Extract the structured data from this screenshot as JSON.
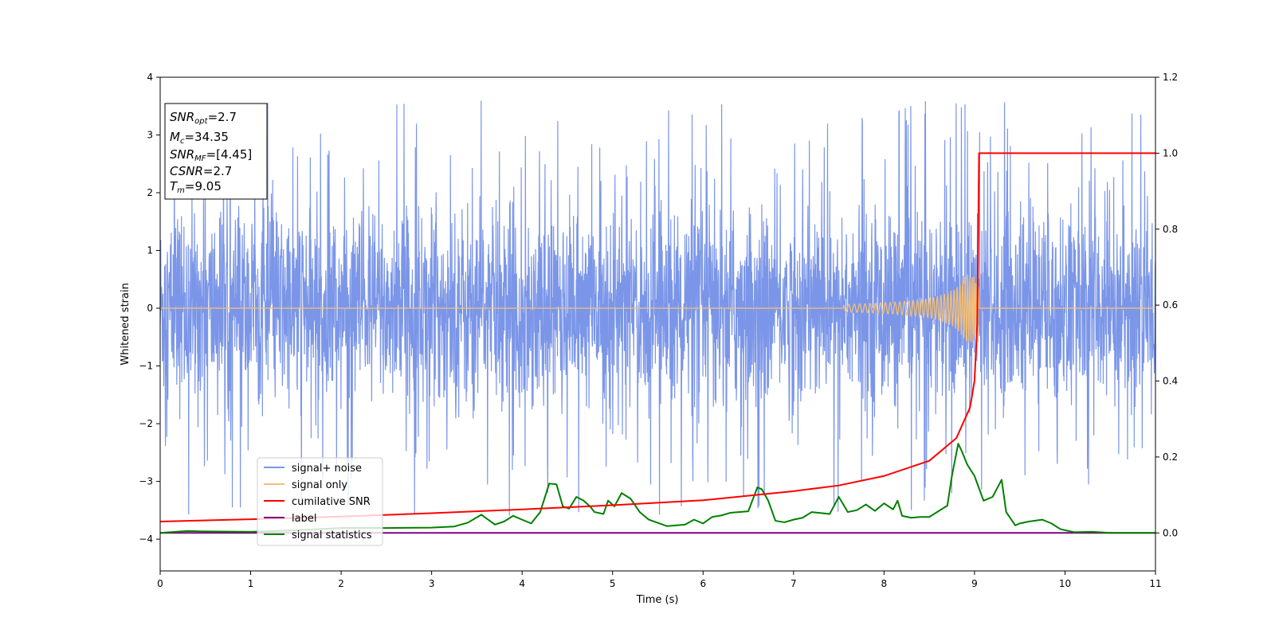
{
  "chart_data": {
    "type": "line",
    "title": "",
    "xlabel": "Time (s)",
    "ylabel": "Whitened strain",
    "y2label": "",
    "xlim": [
      0,
      11
    ],
    "ylim": [
      -4.55,
      4
    ],
    "y2lim": [
      -0.1,
      1.2
    ],
    "xticks": [
      0,
      1,
      2,
      3,
      4,
      5,
      6,
      7,
      8,
      9,
      10,
      11
    ],
    "xtick_labels": [
      "0",
      "1",
      "2",
      "3",
      "4",
      "5",
      "6",
      "7",
      "8",
      "9",
      "10",
      "11"
    ],
    "yticks": [
      4,
      3,
      2,
      1,
      0,
      -1,
      -2,
      -3,
      -4
    ],
    "ytick_labels": [
      "4",
      "3",
      "2",
      "1",
      "0",
      "−1",
      "−2",
      "−3",
      "−4"
    ],
    "y2ticks": [
      1.2,
      1.0,
      0.8,
      0.6,
      0.4,
      0.2,
      0.0
    ],
    "y2tick_labels": [
      "1.2",
      "1.0",
      "0.8",
      "0.6",
      "0.4",
      "0.2",
      "0.0"
    ],
    "grid": false,
    "legend_position": "lower-left",
    "colors": {
      "signal_noise": "#7b96e8",
      "signal_only": "#f3bf78",
      "signal_only_chirp": "#d9a27a",
      "cumulative_snr": "#ff0000",
      "label": "#800080",
      "signal_statistics": "#008000"
    },
    "series": [
      {
        "name": "signal+ noise",
        "axis": "left",
        "kind": "whitened noise with chirp",
        "amplitude_envelope": {
          "typical_peak": 2.3,
          "max": 3.6,
          "min": -4.15
        }
      },
      {
        "name": "signal only",
        "axis": "left",
        "kind": "chirp",
        "merger_time": 9.05,
        "peak_amplitude": 0.6
      },
      {
        "name": "cumilative SNR",
        "axis": "right",
        "x": [
          0,
          1,
          2,
          3,
          4,
          5,
          6,
          7,
          7.5,
          8,
          8.5,
          8.8,
          8.95,
          9.0,
          9.03,
          9.05,
          9.1,
          10,
          11
        ],
        "y": [
          0.03,
          0.036,
          0.043,
          0.052,
          0.062,
          0.073,
          0.086,
          0.11,
          0.125,
          0.15,
          0.19,
          0.25,
          0.33,
          0.4,
          0.55,
          1.0,
          1.0,
          1.0,
          1.0
        ]
      },
      {
        "name": "label",
        "axis": "right",
        "x": [
          0,
          11
        ],
        "y": [
          0.0,
          0.0
        ]
      },
      {
        "name": "signal statistics",
        "axis": "right",
        "x": [
          0,
          0.3,
          0.5,
          1,
          1.5,
          2,
          2.5,
          3,
          3.25,
          3.4,
          3.55,
          3.7,
          3.8,
          3.9,
          4.0,
          4.1,
          4.2,
          4.3,
          4.38,
          4.45,
          4.52,
          4.6,
          4.68,
          4.75,
          4.8,
          4.9,
          4.95,
          5.02,
          5.1,
          5.2,
          5.3,
          5.4,
          5.6,
          5.8,
          5.9,
          6.0,
          6.1,
          6.2,
          6.3,
          6.5,
          6.6,
          6.65,
          6.72,
          6.8,
          6.9,
          7.0,
          7.1,
          7.2,
          7.4,
          7.5,
          7.6,
          7.7,
          7.8,
          7.9,
          8.0,
          8.1,
          8.15,
          8.2,
          8.3,
          8.4,
          8.5,
          8.7,
          8.75,
          8.82,
          8.86,
          8.92,
          9.0,
          9.1,
          9.2,
          9.3,
          9.35,
          9.45,
          9.5,
          9.6,
          9.75,
          9.85,
          9.95,
          10.1,
          10.3,
          10.5,
          11
        ],
        "y": [
          0.0,
          0.005,
          0.004,
          0.003,
          0.007,
          0.013,
          0.013,
          0.014,
          0.017,
          0.027,
          0.048,
          0.022,
          0.03,
          0.045,
          0.035,
          0.025,
          0.055,
          0.13,
          0.128,
          0.07,
          0.064,
          0.095,
          0.085,
          0.07,
          0.055,
          0.05,
          0.085,
          0.07,
          0.105,
          0.09,
          0.055,
          0.035,
          0.018,
          0.022,
          0.035,
          0.025,
          0.042,
          0.046,
          0.053,
          0.057,
          0.12,
          0.115,
          0.085,
          0.032,
          0.028,
          0.035,
          0.04,
          0.055,
          0.05,
          0.095,
          0.055,
          0.06,
          0.075,
          0.058,
          0.078,
          0.062,
          0.085,
          0.045,
          0.04,
          0.042,
          0.042,
          0.072,
          0.15,
          0.235,
          0.215,
          0.18,
          0.15,
          0.085,
          0.095,
          0.14,
          0.055,
          0.02,
          0.025,
          0.03,
          0.035,
          0.025,
          0.01,
          0.002,
          0.003,
          0.0,
          0.0
        ]
      }
    ]
  },
  "legend": [
    {
      "label": "signal+ noise",
      "color": "#7b96e8"
    },
    {
      "label": "signal only",
      "color": "#f3bf78"
    },
    {
      "label": "cumilative SNR",
      "color": "#ff0000"
    },
    {
      "label": "label",
      "color": "#800080"
    },
    {
      "label": "signal statistics",
      "color": "#008000"
    }
  ],
  "info_box": {
    "snr_opt": {
      "symbol": "SNR",
      "sub": "opt",
      "value": "=2.7"
    },
    "mc": {
      "symbol": "M",
      "sub": "c",
      "value": "=34.35"
    },
    "snr_mf": {
      "symbol": "SNR",
      "sub": "MF",
      "value": "=[4.45]"
    },
    "csnr": {
      "symbol": "CSNR",
      "value": "=2.7"
    },
    "tm": {
      "symbol": "T",
      "sub": "m",
      "value": "=9.05"
    }
  }
}
